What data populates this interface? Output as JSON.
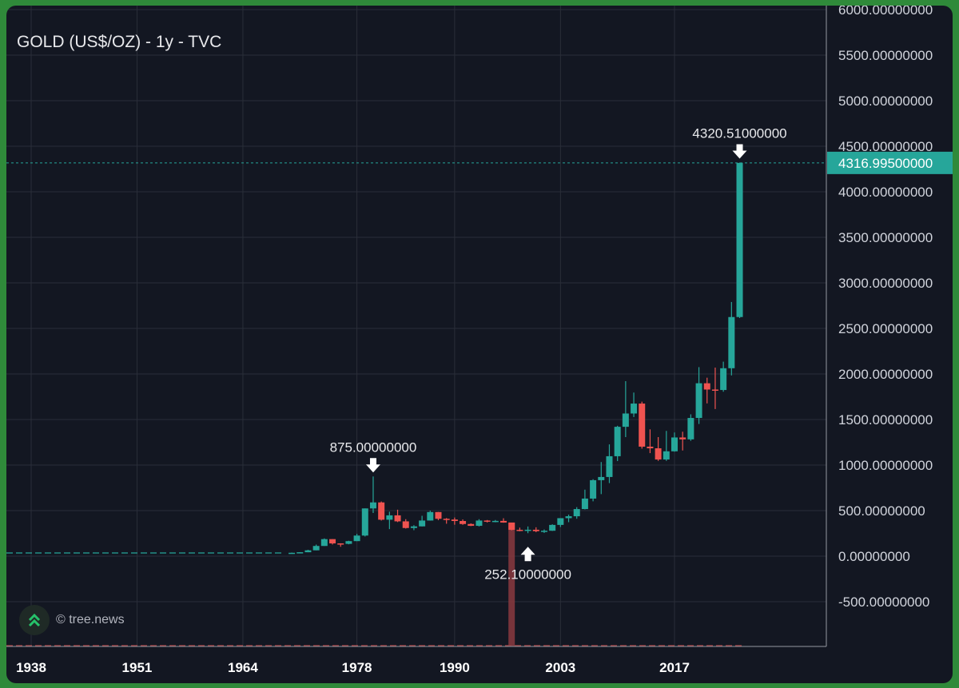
{
  "header": {
    "title": "GOLD (US$/OZ) - 1y - TVC"
  },
  "watermark": {
    "text": "© tree.news",
    "icon": "double-chevron-up-icon"
  },
  "colors": {
    "up": "#26a69a",
    "down": "#ef5350",
    "background": "#131722",
    "grid": "#2a2e39",
    "text": "#d1d4dc",
    "frame": "#2f8a3a"
  },
  "price_label": {
    "value": "4316.99500000"
  },
  "chart_data": {
    "type": "candlestick",
    "title": "GOLD (US$/OZ) - 1y - TVC",
    "ylim": [
      -1000,
      6000
    ],
    "xlim": [
      1935,
      2034
    ],
    "y_ticks": [
      "6000.00000000",
      "5500.00000000",
      "5000.00000000",
      "4500.00000000",
      "4000.00000000",
      "3500.00000000",
      "3000.00000000",
      "2500.00000000",
      "2000.00000000",
      "1500.00000000",
      "1000.00000000",
      "500.00000000",
      "0.00000000",
      "-500.00000000"
    ],
    "y_tick_values": [
      6000,
      5500,
      5000,
      4500,
      4000,
      3500,
      3000,
      2500,
      2000,
      1500,
      1000,
      500,
      0,
      -500
    ],
    "x_ticks": [
      "1938",
      "1951",
      "1964",
      "1978",
      "1990",
      "2003",
      "2017"
    ],
    "x_tick_values": [
      1938,
      1951,
      1964,
      1978,
      1990,
      2003,
      2017
    ],
    "current_price": 4316.995,
    "annotations": [
      {
        "text": "875.00000000",
        "year": 1980,
        "value": 875,
        "arrow": "down"
      },
      {
        "text": "252.10000000",
        "year": 1999,
        "value": 252.1,
        "arrow": "up"
      },
      {
        "text": "4320.51000000",
        "year": 2025,
        "value": 4320.51,
        "arrow": "down"
      }
    ],
    "candles": [
      {
        "year": 1970,
        "o": 35,
        "h": 39,
        "l": 35,
        "c": 37
      },
      {
        "year": 1971,
        "o": 37,
        "h": 44,
        "l": 37,
        "c": 43
      },
      {
        "year": 1972,
        "o": 43,
        "h": 70,
        "l": 43,
        "c": 64
      },
      {
        "year": 1973,
        "o": 64,
        "h": 127,
        "l": 64,
        "c": 112
      },
      {
        "year": 1974,
        "o": 112,
        "h": 195,
        "l": 112,
        "c": 187
      },
      {
        "year": 1975,
        "o": 187,
        "h": 186,
        "l": 128,
        "c": 140
      },
      {
        "year": 1976,
        "o": 140,
        "h": 141,
        "l": 103,
        "c": 135
      },
      {
        "year": 1977,
        "o": 135,
        "h": 169,
        "l": 130,
        "c": 165
      },
      {
        "year": 1978,
        "o": 165,
        "h": 245,
        "l": 165,
        "c": 226
      },
      {
        "year": 1979,
        "o": 226,
        "h": 524,
        "l": 216,
        "c": 524
      },
      {
        "year": 1980,
        "o": 524,
        "h": 875,
        "l": 474,
        "c": 590
      },
      {
        "year": 1981,
        "o": 590,
        "h": 600,
        "l": 391,
        "c": 400
      },
      {
        "year": 1982,
        "o": 400,
        "h": 488,
        "l": 297,
        "c": 448
      },
      {
        "year": 1983,
        "o": 448,
        "h": 510,
        "l": 374,
        "c": 382
      },
      {
        "year": 1984,
        "o": 382,
        "h": 406,
        "l": 303,
        "c": 309
      },
      {
        "year": 1985,
        "o": 309,
        "h": 340,
        "l": 285,
        "c": 327
      },
      {
        "year": 1986,
        "o": 327,
        "h": 443,
        "l": 326,
        "c": 391
      },
      {
        "year": 1987,
        "o": 391,
        "h": 500,
        "l": 390,
        "c": 484
      },
      {
        "year": 1988,
        "o": 484,
        "h": 485,
        "l": 395,
        "c": 410
      },
      {
        "year": 1989,
        "o": 410,
        "h": 418,
        "l": 356,
        "c": 402
      },
      {
        "year": 1990,
        "o": 402,
        "h": 424,
        "l": 345,
        "c": 386
      },
      {
        "year": 1991,
        "o": 386,
        "h": 403,
        "l": 344,
        "c": 353
      },
      {
        "year": 1992,
        "o": 353,
        "h": 360,
        "l": 330,
        "c": 333
      },
      {
        "year": 1993,
        "o": 333,
        "h": 406,
        "l": 326,
        "c": 391
      },
      {
        "year": 1994,
        "o": 391,
        "h": 397,
        "l": 370,
        "c": 383
      },
      {
        "year": 1995,
        "o": 383,
        "h": 397,
        "l": 372,
        "c": 387
      },
      {
        "year": 1996,
        "o": 387,
        "h": 416,
        "l": 367,
        "c": 369
      },
      {
        "year": 1997,
        "o": 369,
        "h": 368,
        "l": 283,
        "c": 289
      },
      {
        "year": 1998,
        "o": 289,
        "h": 313,
        "l": 273,
        "c": 288
      },
      {
        "year": 1999,
        "o": 288,
        "h": 326,
        "l": 252.1,
        "c": 290
      },
      {
        "year": 2000,
        "o": 290,
        "h": 317,
        "l": 263,
        "c": 274
      },
      {
        "year": 2001,
        "o": 274,
        "h": 293,
        "l": 255,
        "c": 279
      },
      {
        "year": 2002,
        "o": 279,
        "h": 350,
        "l": 277,
        "c": 343
      },
      {
        "year": 2003,
        "o": 343,
        "h": 417,
        "l": 320,
        "c": 417
      },
      {
        "year": 2004,
        "o": 417,
        "h": 456,
        "l": 373,
        "c": 438
      },
      {
        "year": 2005,
        "o": 438,
        "h": 538,
        "l": 411,
        "c": 517
      },
      {
        "year": 2006,
        "o": 517,
        "h": 730,
        "l": 513,
        "c": 632
      },
      {
        "year": 2007,
        "o": 632,
        "h": 845,
        "l": 602,
        "c": 834
      },
      {
        "year": 2008,
        "o": 834,
        "h": 1033,
        "l": 681,
        "c": 869
      },
      {
        "year": 2009,
        "o": 869,
        "h": 1227,
        "l": 802,
        "c": 1097
      },
      {
        "year": 2010,
        "o": 1097,
        "h": 1431,
        "l": 1044,
        "c": 1420
      },
      {
        "year": 2011,
        "o": 1420,
        "h": 1921,
        "l": 1307,
        "c": 1566
      },
      {
        "year": 2012,
        "o": 1566,
        "h": 1796,
        "l": 1527,
        "c": 1675
      },
      {
        "year": 2013,
        "o": 1675,
        "h": 1696,
        "l": 1180,
        "c": 1202
      },
      {
        "year": 2014,
        "o": 1202,
        "h": 1392,
        "l": 1131,
        "c": 1184
      },
      {
        "year": 2015,
        "o": 1184,
        "h": 1307,
        "l": 1046,
        "c": 1061
      },
      {
        "year": 2016,
        "o": 1061,
        "h": 1375,
        "l": 1046,
        "c": 1151
      },
      {
        "year": 2017,
        "o": 1151,
        "h": 1358,
        "l": 1147,
        "c": 1303
      },
      {
        "year": 2018,
        "o": 1303,
        "h": 1366,
        "l": 1160,
        "c": 1282
      },
      {
        "year": 2019,
        "o": 1282,
        "h": 1557,
        "l": 1266,
        "c": 1517
      },
      {
        "year": 2020,
        "o": 1517,
        "h": 2075,
        "l": 1451,
        "c": 1898
      },
      {
        "year": 2021,
        "o": 1898,
        "h": 1959,
        "l": 1677,
        "c": 1829
      },
      {
        "year": 2022,
        "o": 1829,
        "h": 2070,
        "l": 1615,
        "c": 1824
      },
      {
        "year": 2023,
        "o": 1824,
        "h": 2135,
        "l": 1805,
        "c": 2063
      },
      {
        "year": 2024,
        "o": 2063,
        "h": 2790,
        "l": 1984,
        "c": 2625
      },
      {
        "year": 2025,
        "o": 2625,
        "h": 4320.51,
        "l": 2614,
        "c": 4316.995
      }
    ],
    "anomaly_bar": {
      "year": 1997,
      "from": 369,
      "to": -1000
    }
  }
}
